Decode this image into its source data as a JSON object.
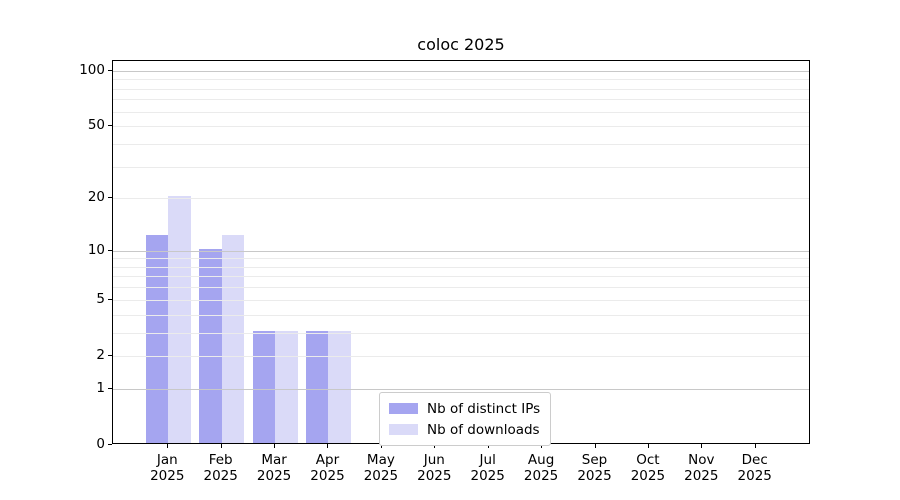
{
  "chart_data": {
    "type": "bar",
    "title": "coloc 2025",
    "categories": [
      "Jan",
      "Feb",
      "Mar",
      "Apr",
      "May",
      "Jun",
      "Jul",
      "Aug",
      "Sep",
      "Oct",
      "Nov",
      "Dec"
    ],
    "category_year_label": "2025",
    "series": [
      {
        "name": "Nb of distinct IPs",
        "color": "#a5a5f0",
        "values": [
          12,
          10,
          3,
          3,
          0,
          0,
          0,
          0,
          0,
          0,
          0,
          0
        ]
      },
      {
        "name": "Nb of downloads",
        "color": "#dadaf8",
        "values": [
          20,
          12,
          3,
          3,
          0,
          0,
          0,
          0,
          0,
          0,
          0,
          0
        ]
      }
    ],
    "yscale": "log1p",
    "ylim": [
      0,
      113
    ],
    "yticks": [
      0,
      1,
      2,
      5,
      10,
      20,
      50,
      100
    ],
    "major_gridlines": [
      1,
      10,
      100
    ],
    "minor_gridlines": [
      2,
      3,
      4,
      5,
      6,
      7,
      8,
      9,
      20,
      30,
      40,
      50,
      60,
      70,
      80,
      90
    ],
    "grid": "on",
    "legend_position": "lower-center",
    "colors": {
      "major_grid": "#c8c8c8",
      "minor_grid": "#ebebeb",
      "spine": "#000000",
      "text": "#000000"
    }
  }
}
